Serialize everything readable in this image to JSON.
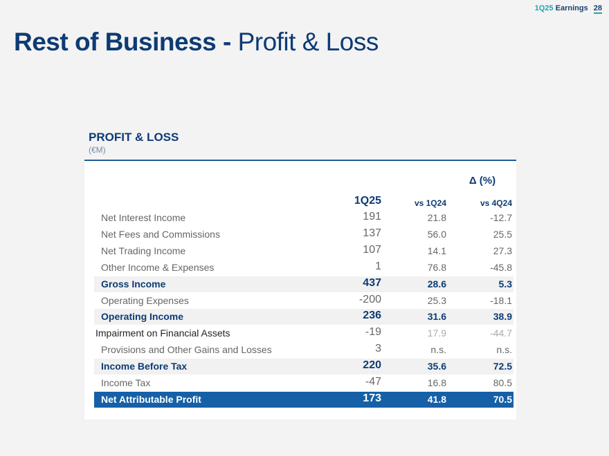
{
  "header": {
    "quarter": "1Q25",
    "label": "Earnings",
    "page": "28"
  },
  "title": {
    "bold": "Rest of Business -",
    "light": "Profit & Loss"
  },
  "section": {
    "title": "PROFIT & LOSS",
    "unit": "(€M)"
  },
  "table": {
    "delta_header": "Δ (%)",
    "columns": [
      "1Q25",
      "vs 1Q24",
      "vs 4Q24"
    ],
    "rows": [
      {
        "label": "Net Interest Income",
        "v": "191",
        "d1": "21.8",
        "d2": "-12.7"
      },
      {
        "label": "Net Fees and Commissions",
        "v": "137",
        "d1": "56.0",
        "d2": "25.5"
      },
      {
        "label": "Net Trading Income",
        "v": "107",
        "d1": "14.1",
        "d2": "27.3"
      },
      {
        "label": "Other Income & Expenses",
        "v": "1",
        "d1": "76.8",
        "d2": "-45.8"
      },
      {
        "label": "Gross Income",
        "v": "437",
        "d1": "28.6",
        "d2": "5.3"
      },
      {
        "label": "Operating Expenses",
        "v": "-200",
        "d1": "25.3",
        "d2": "-18.1"
      },
      {
        "label": "Operating Income",
        "v": "236",
        "d1": "31.6",
        "d2": "38.9"
      },
      {
        "label": "Impairment on Financial Assets",
        "v": "-19",
        "d1": "17.9",
        "d2": "-44.7"
      },
      {
        "label": "Provisions and Other Gains and Losses",
        "v": "3",
        "d1": "n.s.",
        "d2": "n.s."
      },
      {
        "label": "Income Before Tax",
        "v": "220",
        "d1": "35.6",
        "d2": "72.5"
      },
      {
        "label": "Income Tax",
        "v": "-47",
        "d1": "16.8",
        "d2": "80.5"
      },
      {
        "label": "Net Attributable Profit",
        "v": "173",
        "d1": "41.8",
        "d2": "70.5"
      }
    ]
  }
}
